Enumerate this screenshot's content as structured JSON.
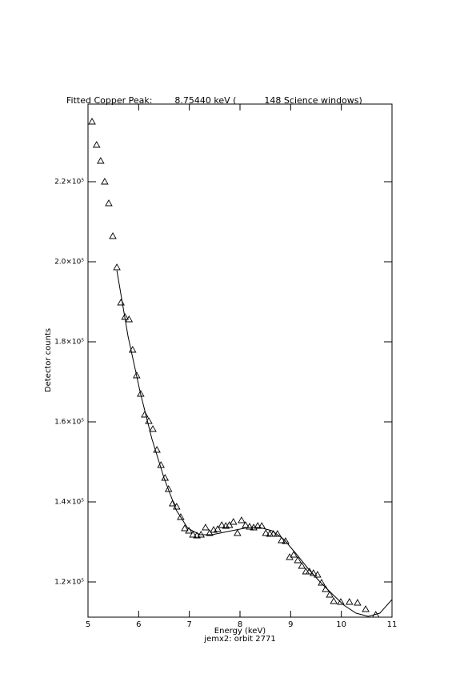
{
  "chart_data": {
    "type": "scatter",
    "title": "Fitted Copper Peak:        8.75440 keV (          148 Science windows)",
    "xlabel": "Energy (keV)",
    "subtitle": "jemx2: orbit 2771",
    "ylabel": "Detector counts",
    "xlim": [
      5,
      11
    ],
    "ylim": [
      111200,
      239400
    ],
    "xticks": [
      5,
      6,
      7,
      8,
      9,
      10,
      11
    ],
    "yticks": [
      {
        "value": 120000,
        "label": "1.2×10⁵"
      },
      {
        "value": 140000,
        "label": "1.4×10⁵"
      },
      {
        "value": 160000,
        "label": "1.6×10⁵"
      },
      {
        "value": 180000,
        "label": "1.8×10⁵"
      },
      {
        "value": 200000,
        "label": "2.0×10⁵"
      },
      {
        "value": 220000,
        "label": "2.2×10⁵"
      }
    ],
    "series": [
      {
        "type": "scatter",
        "color": "#000000",
        "x": [
          5.08,
          5.17,
          5.25,
          5.33,
          5.41,
          5.49,
          5.57,
          5.65,
          5.73,
          5.81,
          5.88,
          5.96,
          6.04,
          6.12,
          6.2,
          6.28,
          6.36,
          6.44,
          6.52,
          6.59,
          6.67,
          6.75,
          6.83,
          6.91,
          6.99,
          7.07,
          7.15,
          7.23,
          7.32,
          7.4,
          7.48,
          7.56,
          7.64,
          7.72,
          7.79,
          7.87,
          7.95,
          8.03,
          8.11,
          8.19,
          8.27,
          8.35,
          8.43,
          8.51,
          8.59,
          8.66,
          8.74,
          8.82,
          8.9,
          8.98,
          9.06,
          9.14,
          9.22,
          9.3,
          9.37,
          9.45,
          9.53,
          9.61,
          9.69,
          9.77,
          9.85,
          9.99,
          10.16,
          10.32,
          10.48,
          10.68
        ],
        "values": [
          235000,
          229200,
          225200,
          220000,
          214600,
          206400,
          198600,
          189800,
          186200,
          185600,
          178000,
          171600,
          167000,
          161800,
          160200,
          158200,
          153000,
          149200,
          146000,
          143200,
          139600,
          138800,
          136200,
          133400,
          132800,
          131800,
          131600,
          131800,
          133600,
          132200,
          133000,
          133200,
          134200,
          134000,
          134200,
          135000,
          132200,
          135400,
          134200,
          133800,
          133600,
          134000,
          134000,
          132200,
          132000,
          132000,
          132000,
          130400,
          130200,
          126200,
          126800,
          125400,
          124000,
          122600,
          122600,
          122200,
          121800,
          119800,
          118200,
          116800,
          115200,
          115000,
          115000,
          114800,
          113200,
          111800
        ]
      },
      {
        "type": "line",
        "color": "#000000",
        "x": [
          5.57,
          5.79,
          6.03,
          6.26,
          6.5,
          6.74,
          6.97,
          7.21,
          7.45,
          7.68,
          7.92,
          8.16,
          8.39,
          8.63,
          8.87,
          9.11,
          9.34,
          9.58,
          9.82,
          10.05,
          10.29,
          10.53,
          10.76,
          11.0
        ],
        "values": [
          197800,
          181400,
          167400,
          155800,
          146000,
          138000,
          133400,
          131800,
          131800,
          132400,
          133000,
          133600,
          133600,
          132800,
          130600,
          127000,
          123400,
          120000,
          117000,
          114200,
          112200,
          111400,
          112200,
          115600
        ]
      }
    ]
  }
}
